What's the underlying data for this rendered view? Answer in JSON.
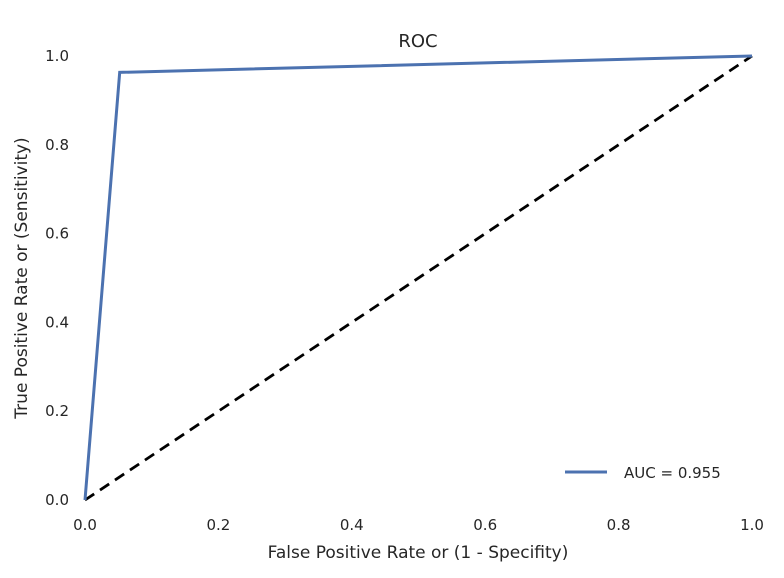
{
  "chart_data": {
    "type": "line",
    "title": "ROC",
    "xlabel": "False Positive Rate or (1 - Specifity)",
    "ylabel": "True Positive Rate or (Sensitivity)",
    "xlim": [
      0.0,
      1.0
    ],
    "ylim": [
      0.0,
      1.0
    ],
    "xticks": [
      "0.0",
      "0.2",
      "0.4",
      "0.6",
      "0.8",
      "1.0"
    ],
    "yticks": [
      "0.0",
      "0.2",
      "0.4",
      "0.6",
      "0.8",
      "1.0"
    ],
    "grid": false,
    "legend_position": "lower-right",
    "series": [
      {
        "name": "AUC = 0.955",
        "color": "#4c72b0",
        "style": "solid",
        "x": [
          0.0,
          0.052,
          1.0
        ],
        "y": [
          0.0,
          0.963,
          1.0
        ]
      },
      {
        "color": "#000000",
        "style": "dashed",
        "x": [
          0.0,
          1.0
        ],
        "y": [
          0.0,
          1.0
        ]
      }
    ]
  }
}
